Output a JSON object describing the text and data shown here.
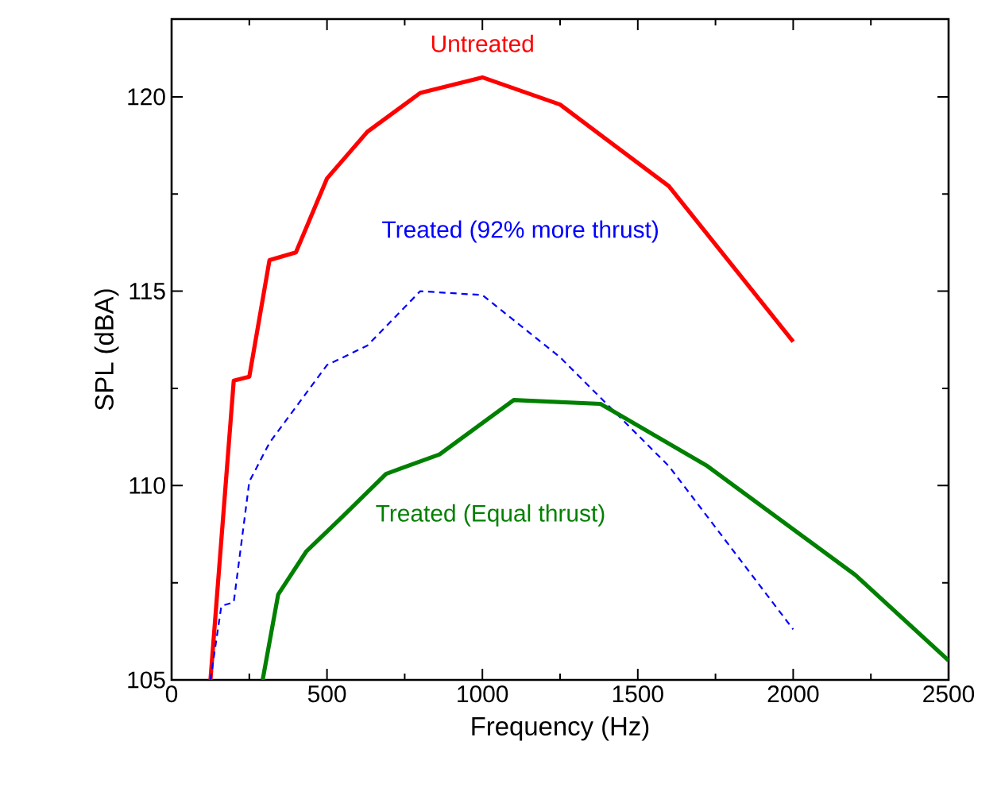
{
  "chart_data": {
    "type": "line",
    "xlabel": "Frequency (Hz)",
    "ylabel": "SPL (dBA)",
    "xlim": [
      0,
      2500
    ],
    "ylim": [
      105,
      122
    ],
    "xticks": [
      0,
      500,
      1000,
      1500,
      2000,
      2500
    ],
    "yticks": [
      105,
      110,
      115,
      120
    ],
    "legend": false,
    "grid": false,
    "series": [
      {
        "name": "Untreated",
        "color": "#ff0000",
        "line_style": "solid",
        "x": [
          125,
          200,
          250,
          315,
          400,
          500,
          630,
          800,
          1000,
          1250,
          1600,
          2000
        ],
        "values": [
          105,
          112.7,
          112.8,
          115.8,
          116.0,
          117.9,
          119.1,
          120.1,
          120.5,
          119.8,
          117.7,
          113.7
        ]
      },
      {
        "name": "Treated (92% more thrust)",
        "color": "#0000ff",
        "line_style": "dashed",
        "x": [
          125,
          160,
          200,
          250,
          315,
          500,
          630,
          800,
          1000,
          1250,
          1600,
          2000
        ],
        "values": [
          105,
          106.9,
          107.0,
          110.1,
          111.1,
          113.1,
          113.6,
          115.0,
          114.9,
          113.3,
          110.5,
          106.3
        ]
      },
      {
        "name": "Treated (Equal thrust)",
        "color": "#008000",
        "line_style": "solid",
        "x": [
          293,
          343,
          433,
          550,
          690,
          862,
          1101,
          1380,
          1724,
          2200,
          2500
        ],
        "values": [
          105,
          107.2,
          108.3,
          109.2,
          110.3,
          110.8,
          112.2,
          112.1,
          110.5,
          107.7,
          105.5
        ]
      }
    ]
  }
}
